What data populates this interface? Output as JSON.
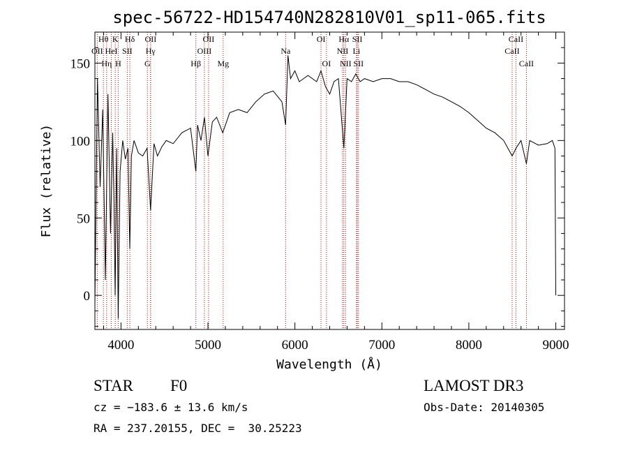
{
  "chart_data": {
    "type": "line",
    "title": "spec-56722-HD154740N282810V01_sp11-065.fits",
    "xlabel": "Wavelength (Å)",
    "ylabel": "Flux (relative)",
    "xlim": [
      3700,
      9100
    ],
    "ylim": [
      -22,
      170
    ],
    "x_ticks": [
      4000,
      5000,
      6000,
      7000,
      8000,
      9000
    ],
    "y_ticks": [
      0,
      50,
      100,
      150
    ],
    "grid": false,
    "series": [
      {
        "x": [
          3700,
          3730,
          3760,
          3790,
          3820,
          3850,
          3880,
          3905,
          3920,
          3933,
          3950,
          3968,
          3990,
          4020,
          4050,
          4080,
          4101,
          4120,
          4150,
          4200,
          4250,
          4300,
          4340,
          4380,
          4420,
          4470,
          4520,
          4600,
          4700,
          4800,
          4861,
          4880,
          4920,
          4960,
          5000,
          5050,
          5100,
          5170,
          5250,
          5350,
          5450,
          5550,
          5650,
          5750,
          5850,
          5893,
          5920,
          5950,
          6000,
          6050,
          6100,
          6150,
          6200,
          6250,
          6300,
          6350,
          6400,
          6450,
          6500,
          6563,
          6600,
          6650,
          6700,
          6750,
          6800,
          6900,
          7000,
          7100,
          7200,
          7300,
          7400,
          7500,
          7600,
          7700,
          7800,
          7900,
          8000,
          8100,
          8200,
          8300,
          8400,
          8498,
          8542,
          8600,
          8662,
          8700,
          8800,
          8900,
          8960,
          8990,
          9000
        ],
        "y": [
          -5,
          140,
          70,
          120,
          10,
          130,
          40,
          105,
          60,
          0,
          95,
          -15,
          80,
          100,
          88,
          95,
          30,
          90,
          100,
          92,
          90,
          95,
          55,
          98,
          90,
          96,
          100,
          98,
          105,
          108,
          80,
          110,
          100,
          115,
          90,
          112,
          115,
          105,
          118,
          120,
          118,
          125,
          130,
          132,
          125,
          110,
          155,
          140,
          145,
          138,
          140,
          142,
          140,
          138,
          145,
          135,
          130,
          138,
          140,
          95,
          140,
          138,
          143,
          138,
          140,
          138,
          140,
          140,
          138,
          138,
          136,
          133,
          130,
          128,
          125,
          122,
          118,
          113,
          108,
          105,
          100,
          90,
          95,
          100,
          85,
          100,
          97,
          98,
          100,
          95,
          0
        ]
      }
    ],
    "lines": [
      {
        "name": "Hθ",
        "wl": 3798
      },
      {
        "name": "K",
        "wl": 3934
      },
      {
        "name": "Hδ",
        "wl": 4102
      },
      {
        "name": "OII",
        "wl": 4341
      },
      {
        "name": "OII",
        "wl": 5007
      },
      {
        "name": "OI",
        "wl": 6300
      },
      {
        "name": "Hα",
        "wl": 6563
      },
      {
        "name": "SII",
        "wl": 6717
      },
      {
        "name": "CaII",
        "wl": 8542
      },
      {
        "name": "OII",
        "wl": 3727
      },
      {
        "name": "HeI",
        "wl": 3889
      },
      {
        "name": "SII",
        "wl": 4072
      },
      {
        "name": "Hγ",
        "wl": 4340
      },
      {
        "name": "OIII",
        "wl": 4959
      },
      {
        "name": "Na",
        "wl": 5893
      },
      {
        "name": "NII",
        "wl": 6548
      },
      {
        "name": "Li",
        "wl": 6708
      },
      {
        "name": "CaII",
        "wl": 8498
      },
      {
        "name": "Hη",
        "wl": 3835
      },
      {
        "name": "H",
        "wl": 3968
      },
      {
        "name": "G",
        "wl": 4304
      },
      {
        "name": "Hβ",
        "wl": 4861
      },
      {
        "name": "Mg",
        "wl": 5175
      },
      {
        "name": "OI",
        "wl": 6363
      },
      {
        "name": "NII",
        "wl": 6583
      },
      {
        "name": "SII",
        "wl": 6731
      },
      {
        "name": "CaII",
        "wl": 8662
      }
    ]
  },
  "info": {
    "object_class": "STAR",
    "subclass": "F0",
    "survey": "LAMOST DR3",
    "cz": "cz = −183.6 ± 13.6 km/s",
    "obs_date": "Obs-Date: 20140305",
    "coords": "RA = 237.20155, DEC =  30.25223"
  },
  "colors": {
    "spectrum": "#000000",
    "line_markers": "#cc0000"
  }
}
